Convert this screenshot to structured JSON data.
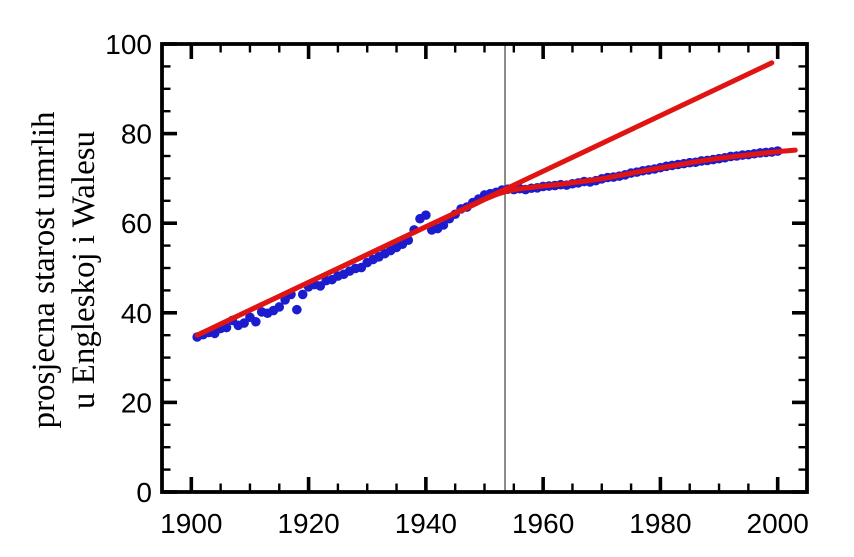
{
  "figure": {
    "background": "#ffffff"
  },
  "chart_data": {
    "type": "scatter",
    "title": "",
    "xlabel": "",
    "ylabel_lines": [
      "prosjecna starost umrlih",
      "u Engleskoj i Walesu"
    ],
    "xlim": [
      1895,
      2005
    ],
    "ylim": [
      0,
      100
    ],
    "x_major_ticks": [
      1900,
      1920,
      1940,
      1960,
      1980,
      2000
    ],
    "x_minor_step": 5,
    "y_major_ticks": [
      0,
      20,
      40,
      60,
      80,
      100
    ],
    "y_minor_step": 5,
    "grid": false,
    "legend": "none",
    "reference_vline_x": 1953.5,
    "colors": {
      "points": "#1c1ccf",
      "trend": "#e11414",
      "vline": "#7f7f7f",
      "axis": "#000000"
    },
    "points": {
      "x": [
        1901,
        1902,
        1903,
        1904,
        1905,
        1906,
        1907,
        1908,
        1909,
        1910,
        1911,
        1912,
        1913,
        1914,
        1915,
        1916,
        1917,
        1918,
        1919,
        1920,
        1921,
        1922,
        1923,
        1924,
        1925,
        1926,
        1927,
        1928,
        1929,
        1930,
        1931,
        1932,
        1933,
        1934,
        1935,
        1936,
        1937,
        1938,
        1939,
        1940,
        1941,
        1942,
        1943,
        1944,
        1945,
        1946,
        1947,
        1948,
        1949,
        1950,
        1951,
        1952,
        1953,
        1954,
        1955,
        1956,
        1957,
        1958,
        1959,
        1960,
        1961,
        1962,
        1963,
        1964,
        1965,
        1966,
        1967,
        1968,
        1969,
        1970,
        1971,
        1972,
        1973,
        1974,
        1975,
        1976,
        1977,
        1978,
        1979,
        1980,
        1981,
        1982,
        1983,
        1984,
        1985,
        1986,
        1987,
        1988,
        1989,
        1990,
        1991,
        1992,
        1993,
        1994,
        1995,
        1996,
        1997,
        1998,
        1999,
        2000
      ],
      "y": [
        34.6,
        35.1,
        35.6,
        35.4,
        36.5,
        36.7,
        38.3,
        37.2,
        37.7,
        39.0,
        38.0,
        40.2,
        39.9,
        40.5,
        41.3,
        42.9,
        44.1,
        40.7,
        44.1,
        45.8,
        46.3,
        46.0,
        47.2,
        47.4,
        48.2,
        48.6,
        49.3,
        49.9,
        50.1,
        51.2,
        51.9,
        52.5,
        53.2,
        53.9,
        54.6,
        55.3,
        56.2,
        58.5,
        61.0,
        61.8,
        58.5,
        58.8,
        59.6,
        61.0,
        62.0,
        63.2,
        63.6,
        64.6,
        65.4,
        66.3,
        66.6,
        66.9,
        67.4,
        67.6,
        67.5,
        67.7,
        67.5,
        67.8,
        67.9,
        68.2,
        68.3,
        68.4,
        68.6,
        68.5,
        68.8,
        69.0,
        69.3,
        69.2,
        69.5,
        69.9,
        70.2,
        70.3,
        70.5,
        70.8,
        71.2,
        71.4,
        71.7,
        71.9,
        72.1,
        72.4,
        72.7,
        72.9,
        73.1,
        73.3,
        73.5,
        73.6,
        73.9,
        74.0,
        74.2,
        74.4,
        74.6,
        74.9,
        75.0,
        75.2,
        75.3,
        75.5,
        75.7,
        75.8,
        75.9,
        76.1
      ]
    },
    "linear_extrapolation": {
      "x": [
        1901,
        1999
      ],
      "y": [
        35.0,
        95.8
      ]
    },
    "smooth_fit": {
      "x": [
        1901,
        1905,
        1910,
        1915,
        1920,
        1925,
        1930,
        1935,
        1940,
        1945,
        1948,
        1950,
        1952,
        1954,
        1956,
        1958,
        1960,
        1963,
        1966,
        1970,
        1974,
        1978,
        1982,
        1986,
        1990,
        1994,
        1998,
        2001,
        2003
      ],
      "y": [
        35.0,
        37.5,
        40.6,
        43.7,
        46.8,
        49.9,
        53.0,
        56.1,
        59.2,
        62.2,
        64.0,
        65.3,
        66.4,
        67.2,
        67.7,
        68.0,
        68.3,
        68.7,
        69.2,
        69.9,
        70.9,
        71.9,
        72.8,
        73.7,
        74.5,
        75.1,
        75.7,
        76.1,
        76.3
      ]
    }
  }
}
